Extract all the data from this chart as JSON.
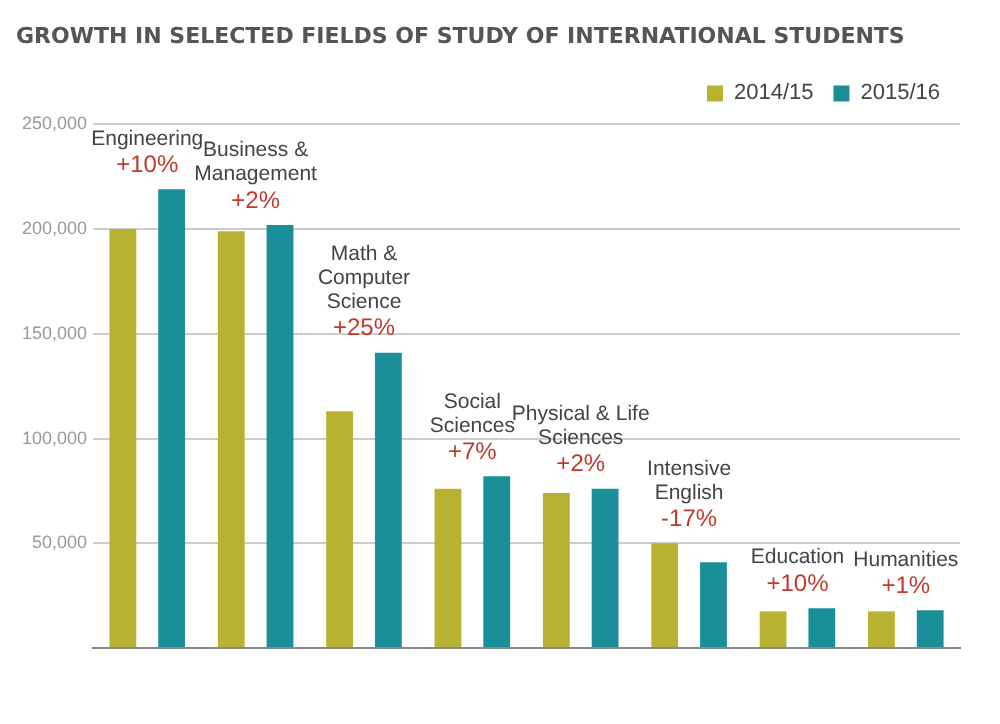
{
  "chart_data": {
    "type": "bar",
    "title": "GROWTH IN SELECTED FIELDS OF STUDY OF INTERNATIONAL STUDENTS",
    "categories": [
      "Engineering",
      "Business & Management",
      "Math & Computer Science",
      "Social Sciences",
      "Physical & Life Sciences",
      "Intensive English",
      "Education",
      "Humanities"
    ],
    "series": [
      {
        "name": "2014/15",
        "color": "#b8b232",
        "values": [
          200000,
          199000,
          113000,
          76000,
          74000,
          50000,
          17500,
          17500
        ]
      },
      {
        "name": "2015/16",
        "color": "#1a8f9a",
        "values": [
          219000,
          202000,
          141000,
          82000,
          76000,
          41000,
          19000,
          18000
        ]
      }
    ],
    "ylim": [
      0,
      250000
    ],
    "yticks": [
      {
        "value": 0,
        "label": null
      },
      {
        "value": 50000,
        "label": "50,000"
      },
      {
        "value": 100000,
        "label": "100,000"
      },
      {
        "value": 150000,
        "label": "150,000"
      },
      {
        "value": 200000,
        "label": "200,000"
      },
      {
        "value": 250000,
        "label": "250,000"
      }
    ],
    "grid": "y",
    "legend": "top right",
    "annotations": [
      "+10%",
      "+2%",
      "+25%",
      "+7%",
      "+2%",
      "-17%",
      "+10%",
      "+1%"
    ]
  }
}
